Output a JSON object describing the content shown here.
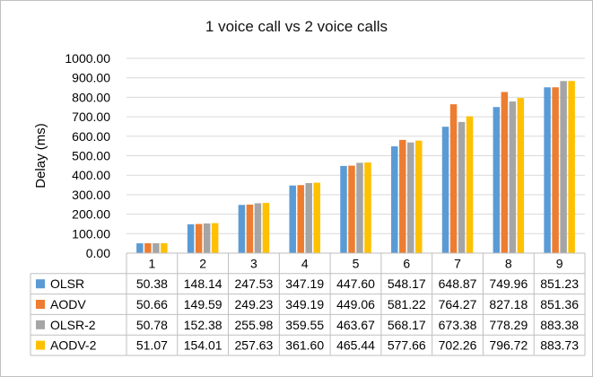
{
  "chart_data": {
    "type": "bar",
    "title": "1 voice call vs 2 voice calls",
    "xlabel": "",
    "ylabel": "Delay (ms)",
    "ylim": [
      0,
      1000
    ],
    "y_ticks": [
      "0.00",
      "100.00",
      "200.00",
      "300.00",
      "400.00",
      "500.00",
      "600.00",
      "700.00",
      "800.00",
      "900.00",
      "1000.00"
    ],
    "grid": "horizontal",
    "legend": "data-table",
    "categories": [
      "1",
      "2",
      "3",
      "4",
      "5",
      "6",
      "7",
      "8",
      "9"
    ],
    "series": [
      {
        "name": "OLSR",
        "color": "#5b9bd5",
        "values": [
          50.38,
          148.14,
          247.53,
          347.19,
          447.6,
          548.17,
          648.87,
          749.96,
          851.23
        ],
        "labels": [
          "50.38",
          "148.14",
          "247.53",
          "347.19",
          "447.60",
          "548.17",
          "648.87",
          "749.96",
          "851.23"
        ]
      },
      {
        "name": "AODV",
        "color": "#ed7d31",
        "values": [
          50.66,
          149.59,
          249.23,
          349.19,
          449.06,
          581.22,
          764.27,
          827.18,
          851.36
        ],
        "labels": [
          "50.66",
          "149.59",
          "249.23",
          "349.19",
          "449.06",
          "581.22",
          "764.27",
          "827.18",
          "851.36"
        ]
      },
      {
        "name": "OLSR-2",
        "color": "#a5a5a5",
        "values": [
          50.78,
          152.38,
          255.98,
          359.55,
          463.67,
          568.17,
          673.38,
          778.29,
          883.38
        ],
        "labels": [
          "50.78",
          "152.38",
          "255.98",
          "359.55",
          "463.67",
          "568.17",
          "673.38",
          "778.29",
          "883.38"
        ]
      },
      {
        "name": "AODV-2",
        "color": "#ffc000",
        "values": [
          51.07,
          154.01,
          257.63,
          361.6,
          465.44,
          577.66,
          702.26,
          796.72,
          883.73
        ],
        "labels": [
          "51.07",
          "154.01",
          "257.63",
          "361.60",
          "465.44",
          "577.66",
          "702.26",
          "796.72",
          "883.73"
        ]
      }
    ]
  }
}
